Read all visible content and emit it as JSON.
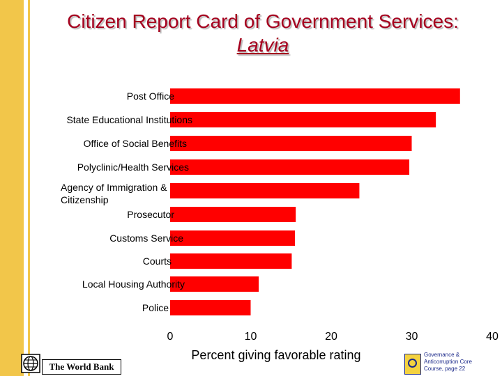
{
  "title": {
    "line1": "Citizen Report Card of Government Services:",
    "line2": "Latvia"
  },
  "chart_data": {
    "type": "bar",
    "orientation": "horizontal",
    "title": "Citizen Report Card of Government Services: Latvia",
    "categories": [
      "Post Office",
      "State Educational Institutions",
      "Office of Social Benefits",
      "Polyclinic/Health Services",
      "Agency of Immigration & Citizenship",
      "Prosecutor",
      "Customs Service",
      "Courts",
      "Local Housing Authority",
      "Police"
    ],
    "label_lines": [
      [
        "Post Office"
      ],
      [
        "State Educational Institutions"
      ],
      [
        "Office of Social Benefits"
      ],
      [
        "Polyclinic/Health Services"
      ],
      [
        "Agency of Immigration &",
        "Citizenship"
      ],
      [
        "Prosecutor"
      ],
      [
        "Customs Service"
      ],
      [
        "Courts"
      ],
      [
        "Local Housing Authority"
      ],
      [
        "Police"
      ]
    ],
    "values": [
      36,
      33,
      30,
      29.7,
      23.5,
      15.6,
      15.5,
      15.1,
      11,
      10
    ],
    "xlabel": "Percent giving favorable rating",
    "ylabel": "",
    "xlim": [
      0,
      40
    ],
    "xticks": [
      0,
      10,
      20,
      30,
      40
    ],
    "grid": false,
    "bar_color": "#ff0000"
  },
  "footer": {
    "logo_text": "The World Bank",
    "right_lines": [
      "Governance &",
      "Anticorruption Core",
      "Course, page 22"
    ]
  },
  "colors": {
    "title": "#a5001e",
    "accent": "#f2c64a",
    "bar": "#ff0000"
  }
}
